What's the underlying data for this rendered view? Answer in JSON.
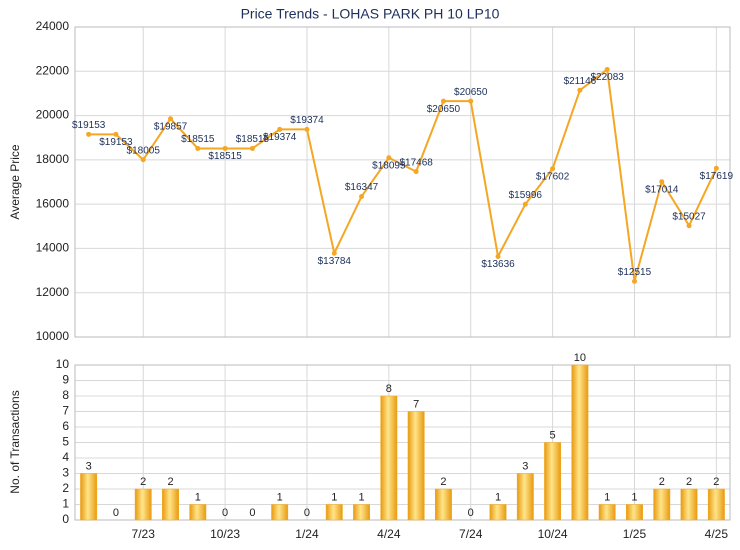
{
  "chart_data": [
    {
      "type": "line",
      "title": "Price Trends - LOHAS PARK PH 10 LP10",
      "y_label": "Average Price",
      "color": "#f5a623",
      "values": [
        19153,
        19153,
        18005,
        19857,
        18515,
        18515,
        18515,
        19374,
        19374,
        13784,
        16347,
        18095,
        17468,
        20650,
        20650,
        13636,
        15996,
        17602,
        21146,
        22083,
        12515,
        17014,
        15027,
        17619
      ],
      "value_labels": [
        "$19153",
        "$19153",
        "$18005",
        "$19857",
        "$18515",
        "$18515",
        "$18515",
        "$19374",
        "$19374",
        "$13784",
        "$16347",
        "$18095",
        "$17468",
        "$20650",
        "$20650",
        "$13636",
        "$15996",
        "$17602",
        "$21146",
        "$22083",
        "$12515",
        "$17014",
        "$15027",
        "$17619"
      ],
      "ylim": [
        10000,
        24000
      ],
      "yticks": [
        10000,
        12000,
        14000,
        16000,
        18000,
        20000,
        22000,
        24000
      ],
      "grid": true
    },
    {
      "type": "bar",
      "y_label": "No. of Transactions",
      "color": "#f0a820",
      "categories": [
        null,
        null,
        "7/23",
        null,
        null,
        "10/23",
        null,
        null,
        "1/24",
        null,
        null,
        "4/24",
        null,
        null,
        "7/24",
        null,
        null,
        "10/24",
        null,
        null,
        "1/25",
        null,
        null,
        "4/25"
      ],
      "values": [
        3,
        0,
        2,
        2,
        1,
        0,
        0,
        1,
        0,
        1,
        1,
        8,
        7,
        2,
        0,
        1,
        3,
        5,
        10,
        1,
        1,
        2,
        2,
        2
      ],
      "ylim": [
        0,
        10
      ],
      "yticks": [
        0,
        1,
        2,
        3,
        4,
        5,
        6,
        7,
        8,
        9,
        10
      ],
      "grid": true
    }
  ]
}
